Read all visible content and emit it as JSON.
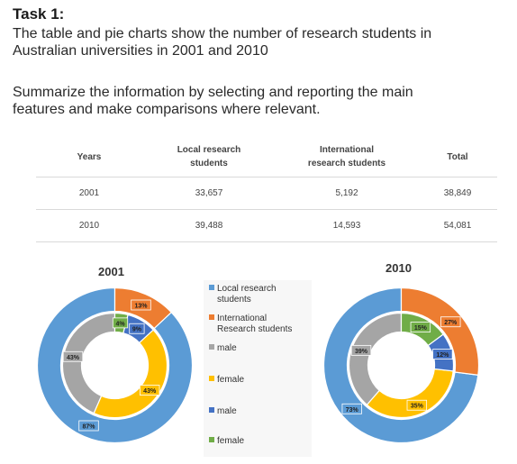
{
  "task": {
    "title": "Task 1:",
    "prompt1_line1": "The table and pie charts show the number of research students in",
    "prompt1_line2": "Australian universities in 2001 and 2010",
    "prompt2_line1": "Summarize the information by selecting and reporting the main",
    "prompt2_line2": "features and make comparisons where relevant."
  },
  "table": {
    "headers": {
      "years": "Years",
      "local_l1": "Local research",
      "local_l2": "students",
      "intl_l1": "International",
      "intl_l2": "research students",
      "total": "Total"
    },
    "rows": [
      {
        "year": "2001",
        "local": "33,657",
        "international": "5,192",
        "total": "38,849"
      },
      {
        "year": "2010",
        "local": "39,488",
        "international": "14,593",
        "total": "54,081"
      }
    ]
  },
  "legend": {
    "local_l1": "Local research",
    "local_l2": "students",
    "intl_l1": "International",
    "intl_l2": "Research students",
    "male1": "male",
    "female1": "female",
    "male2": "male",
    "female2": "female"
  },
  "chart_data": [
    {
      "type": "pie",
      "title": "2001",
      "outer": {
        "labels": [
          "Local research students",
          "International Research students"
        ],
        "values": [
          87,
          13
        ],
        "colors": [
          "#5b9bd5",
          "#ed7d31"
        ]
      },
      "inner": {
        "labels": [
          "male",
          "female",
          "male",
          "female"
        ],
        "values": [
          43,
          43,
          9,
          4
        ],
        "colors": [
          "#a5a5a5",
          "#ffc000",
          "#4472c4",
          "#70ad47"
        ]
      }
    },
    {
      "type": "pie",
      "title": "2010",
      "outer": {
        "labels": [
          "Local research students",
          "International Research students"
        ],
        "values": [
          73,
          27
        ],
        "colors": [
          "#5b9bd5",
          "#ed7d31"
        ]
      },
      "inner": {
        "labels": [
          "male",
          "female",
          "male",
          "female"
        ],
        "values": [
          39,
          35,
          12,
          15
        ],
        "colors": [
          "#a5a5a5",
          "#ffc000",
          "#4472c4",
          "#70ad47"
        ]
      }
    }
  ]
}
